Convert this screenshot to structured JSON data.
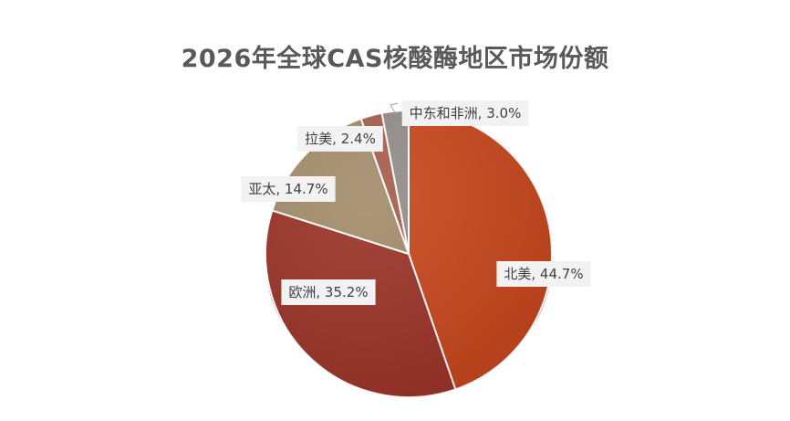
{
  "chart_data": {
    "type": "pie",
    "title": "2026年全球CAS核酸酶地区市场份额",
    "categories": [
      "北美",
      "欧洲",
      "亚太",
      "拉美",
      "中东和非洲"
    ],
    "values": [
      44.7,
      35.2,
      14.7,
      2.4,
      3.0
    ],
    "unit": "%",
    "data_labels": [
      "北美, 44.7%",
      "欧洲, 35.2%",
      "亚太, 14.7%",
      "拉美, 2.4%",
      "中东和非洲, 3.0%"
    ],
    "colors": [
      "#c8451a",
      "#9b3125",
      "#a28b69",
      "#a65c4a",
      "#938c89"
    ],
    "start_angle_deg": 0,
    "direction": "clockwise",
    "legend": "none",
    "label_style": "callout"
  }
}
